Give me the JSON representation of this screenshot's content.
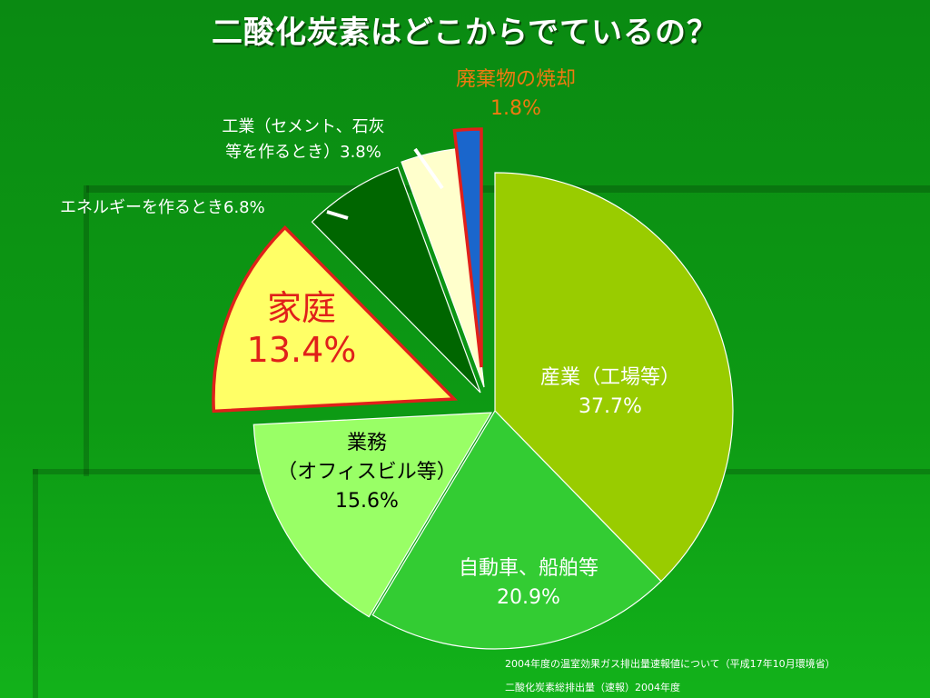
{
  "title": "二酸化炭素はどこからでているの？",
  "colors": {
    "industry": "#99cc00",
    "vehicles": "#33cc33",
    "business": "#99ff66",
    "household": "#ffff66",
    "energy": "#006600",
    "cement": "#ffffcc",
    "waste": "#1a66cc",
    "highlight": "#e0201a"
  },
  "chart_data": {
    "type": "pie",
    "title": "二酸化炭素はどこからでているの？",
    "slices": [
      {
        "key": "industry",
        "label_lines": [
          "産業（工場等）"
        ],
        "value_text": "37.7%",
        "value": 37.7,
        "exploded": false
      },
      {
        "key": "vehicles",
        "label_lines": [
          "自動車、船舶等"
        ],
        "value_text": "20.9%",
        "value": 20.9,
        "exploded": false
      },
      {
        "key": "business",
        "label_lines": [
          "業務",
          "（オフィスビル等）"
        ],
        "value_text": "15.6%",
        "value": 15.6,
        "exploded": true
      },
      {
        "key": "household",
        "label_lines": [
          "家庭"
        ],
        "value_text": "13.4%",
        "value": 13.4,
        "exploded": true
      },
      {
        "key": "energy",
        "label_lines": [
          "エネルギーを作るとき6.8%"
        ],
        "value_text": "",
        "value": 6.8,
        "exploded": true
      },
      {
        "key": "cement",
        "label_lines": [
          "工業（セメント、石灰",
          "等を作るとき）3.8%"
        ],
        "value_text": "",
        "value": 3.8,
        "exploded": true
      },
      {
        "key": "waste",
        "label_lines": [
          "廃棄物の焼却"
        ],
        "value_text": "1.8%",
        "value": 1.8,
        "exploded": true
      }
    ]
  },
  "footer": {
    "line1": "2004年度の温室効果ガス排出量速報値について（平成17年10月環境省）",
    "line2": "二酸化炭素総排出量（速報）2004年度"
  }
}
